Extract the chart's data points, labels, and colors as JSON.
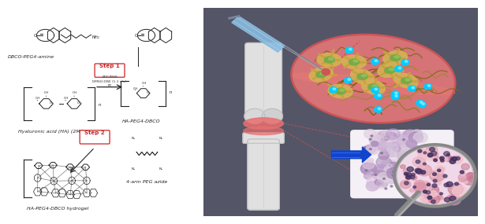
{
  "bg_left": "#f5f5f2",
  "bg_right": "#5a5a6a",
  "labels": {
    "dbco_peg4_amine": "DBCO-PEG4-amine",
    "ha": "Hyaluronic acid (HA) (2MDa)",
    "ha_peg4_dbco": "HA-PEG4-DBCO",
    "step1": "Step 1",
    "step1_detail1": "EDC/NHS",
    "step1_detail2": "DMSO:DIW (1:1 v/v)",
    "step1_detail3": "RT",
    "step2": "Step 2",
    "four_arm_peg": "4-arm PEG azide",
    "hydrogel": "HA-PEG4-DBCO hydrogel"
  },
  "step_box_color": "#cc2222",
  "cell_color_outer": "#d4b86a",
  "cell_color_inner": "#8ab860",
  "fiber_color": "#7a6a20",
  "dot_color": "#00ccff",
  "hydrogel_disk_color": "#e87878",
  "knee_color": "#d8d8d8",
  "cartilage_color": "#e87878",
  "arrow_blue": "#2244bb",
  "magnifier_frame": "#999999",
  "bg_dark": "#555568"
}
